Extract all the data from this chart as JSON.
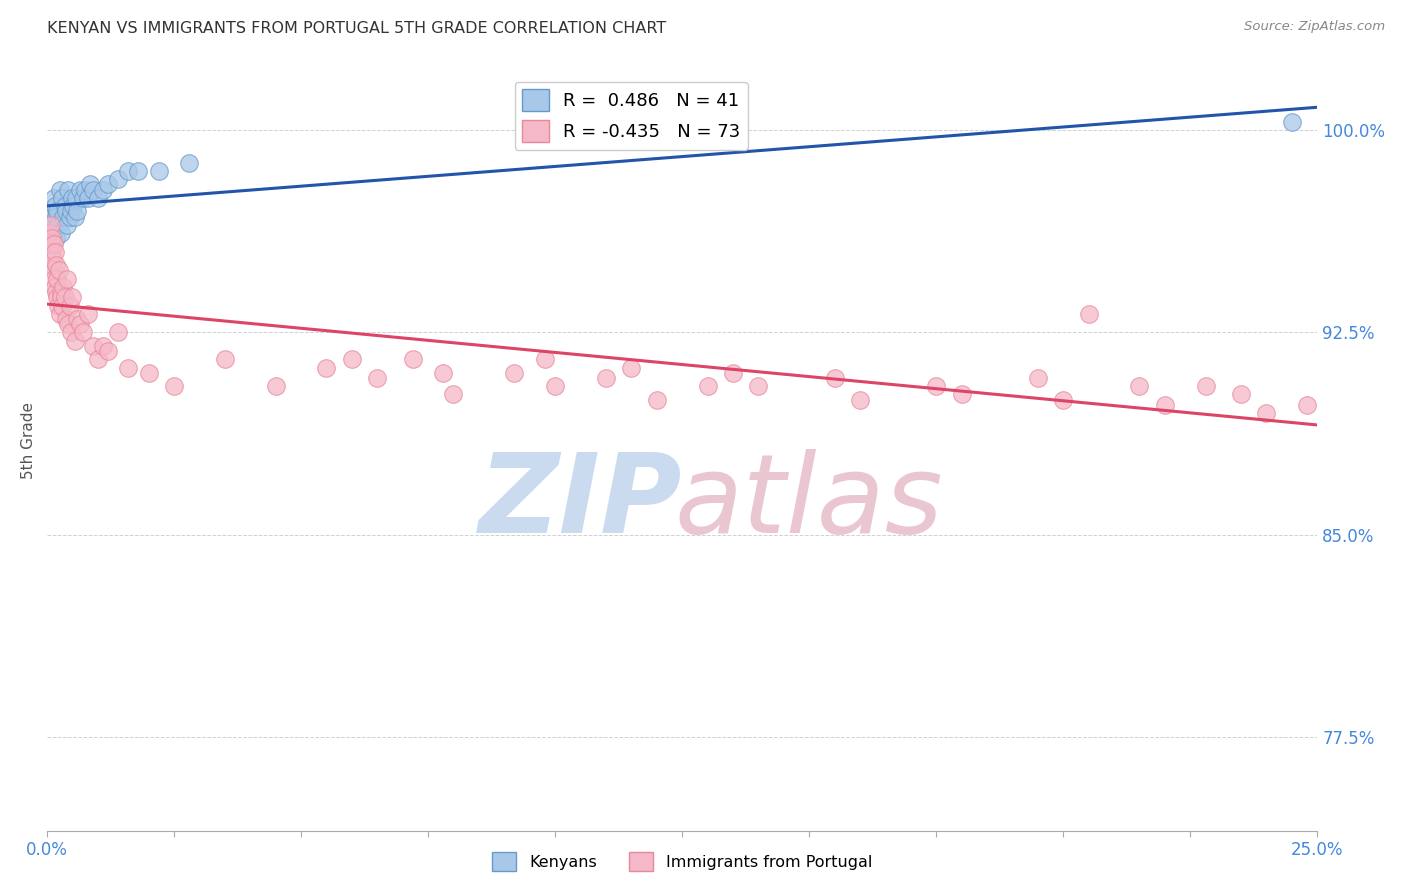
{
  "title": "KENYAN VS IMMIGRANTS FROM PORTUGAL 5TH GRADE CORRELATION CHART",
  "source": "Source: ZipAtlas.com",
  "ylabel": "5th Grade",
  "xlim": [
    0.0,
    25.0
  ],
  "ylim": [
    74.0,
    103.0
  ],
  "yticks": [
    77.5,
    85.0,
    92.5,
    100.0
  ],
  "ytick_labels": [
    "77.5%",
    "85.0%",
    "92.5%",
    "100.0%"
  ],
  "xtick_positions": [
    0.0,
    2.5,
    5.0,
    7.5,
    10.0,
    12.5,
    15.0,
    17.5,
    20.0,
    22.5,
    25.0
  ],
  "kenyan_R": 0.486,
  "kenyan_N": 41,
  "portugal_R": -0.435,
  "portugal_N": 73,
  "kenyan_color": "#a8c8e8",
  "kenyan_edge": "#6699cc",
  "portugal_color": "#f5b8c8",
  "portugal_edge": "#e88899",
  "trend_kenyan_color": "#2255aa",
  "trend_portugal_color": "#dd4466",
  "kenyan_x": [
    0.05,
    0.07,
    0.08,
    0.1,
    0.12,
    0.13,
    0.15,
    0.17,
    0.18,
    0.2,
    0.22,
    0.25,
    0.28,
    0.3,
    0.32,
    0.35,
    0.38,
    0.4,
    0.42,
    0.45,
    0.48,
    0.5,
    0.52,
    0.55,
    0.58,
    0.6,
    0.65,
    0.7,
    0.75,
    0.8,
    0.85,
    0.9,
    1.0,
    1.1,
    1.2,
    1.4,
    1.6,
    1.8,
    2.2,
    2.8,
    24.5
  ],
  "kenyan_y": [
    96.5,
    97.0,
    95.8,
    96.8,
    96.2,
    97.5,
    97.2,
    96.0,
    96.8,
    97.0,
    96.5,
    97.8,
    96.2,
    97.5,
    96.8,
    97.2,
    97.0,
    96.5,
    97.8,
    96.8,
    97.0,
    97.5,
    97.2,
    96.8,
    97.5,
    97.0,
    97.8,
    97.5,
    97.8,
    97.5,
    98.0,
    97.8,
    97.5,
    97.8,
    98.0,
    98.2,
    98.5,
    98.5,
    98.5,
    98.8,
    100.3
  ],
  "portugal_x": [
    0.04,
    0.06,
    0.07,
    0.08,
    0.09,
    0.1,
    0.11,
    0.12,
    0.13,
    0.14,
    0.15,
    0.16,
    0.17,
    0.18,
    0.19,
    0.2,
    0.22,
    0.24,
    0.25,
    0.27,
    0.28,
    0.3,
    0.32,
    0.35,
    0.38,
    0.4,
    0.42,
    0.45,
    0.48,
    0.5,
    0.55,
    0.6,
    0.65,
    0.7,
    0.8,
    0.9,
    1.0,
    1.1,
    1.2,
    1.4,
    1.6,
    2.0,
    2.5,
    3.5,
    4.5,
    5.5,
    6.5,
    7.2,
    8.0,
    9.2,
    10.0,
    11.5,
    12.0,
    13.5,
    14.0,
    15.5,
    16.0,
    17.5,
    18.0,
    19.5,
    20.0,
    21.5,
    22.0,
    22.8,
    23.5,
    24.0,
    24.8,
    6.0,
    7.8,
    9.8,
    11.0,
    13.0,
    20.5
  ],
  "portugal_y": [
    96.2,
    95.8,
    96.5,
    95.0,
    96.0,
    95.5,
    94.8,
    95.2,
    94.5,
    95.8,
    94.2,
    95.5,
    94.0,
    95.0,
    93.8,
    94.5,
    93.5,
    94.8,
    93.2,
    94.0,
    93.8,
    93.5,
    94.2,
    93.8,
    93.0,
    94.5,
    92.8,
    93.5,
    92.5,
    93.8,
    92.2,
    93.0,
    92.8,
    92.5,
    93.2,
    92.0,
    91.5,
    92.0,
    91.8,
    92.5,
    91.2,
    91.0,
    90.5,
    91.5,
    90.5,
    91.2,
    90.8,
    91.5,
    90.2,
    91.0,
    90.5,
    91.2,
    90.0,
    91.0,
    90.5,
    90.8,
    90.0,
    90.5,
    90.2,
    90.8,
    90.0,
    90.5,
    89.8,
    90.5,
    90.2,
    89.5,
    89.8,
    91.5,
    91.0,
    91.5,
    90.8,
    90.5,
    93.2
  ],
  "watermark_zip_color": "#c5d8ee",
  "watermark_atlas_color": "#e8c0cc",
  "legend_inner_label1": "R =  0.486   N = 41",
  "legend_inner_label2": "R = -0.435   N = 73"
}
